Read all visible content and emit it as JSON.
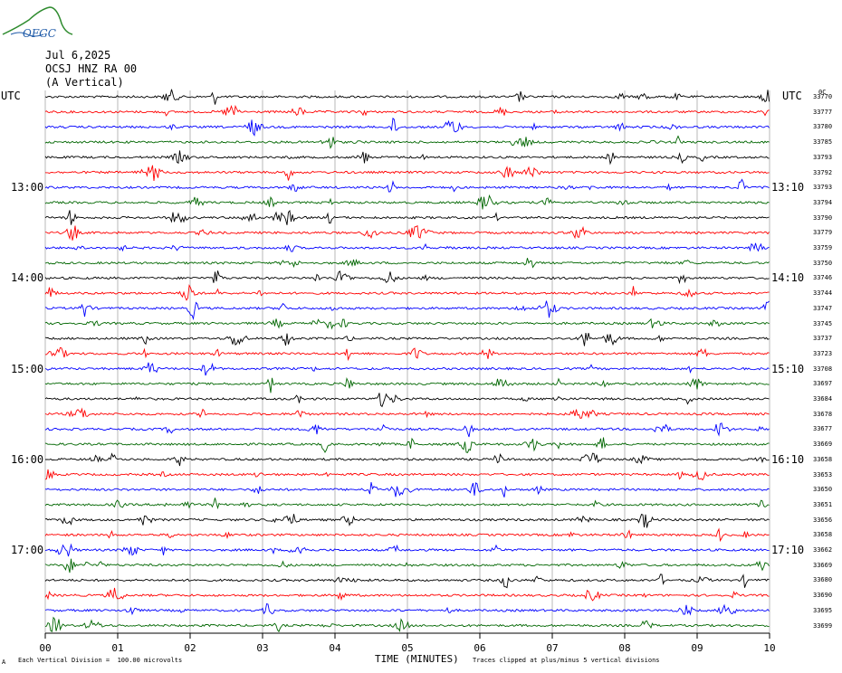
{
  "header": {
    "logo_text": "OFGC",
    "date": "Jul 6,2025",
    "station": "OCSJ HNZ RA 00",
    "component": "(A Vertical)",
    "left_tz": "UTC",
    "right_tz": "UTC"
  },
  "footer": {
    "scale_note": "Each Vertical Division =  100.00 microvolts",
    "clip_note": "Traces clipped at plus/minus 5 vertical divisions",
    "corner_mark": "A"
  },
  "colors": [
    "#000000",
    "#ff0000",
    "#0000ff",
    "#006600"
  ],
  "chart_data": {
    "type": "line",
    "xlabel": "TIME (MINUTES)",
    "x_ticks": [
      "00",
      "01",
      "02",
      "03",
      "04",
      "05",
      "06",
      "07",
      "08",
      "09",
      "10"
    ],
    "xlim": [
      0,
      10
    ],
    "left_time_labels": [
      {
        "row": 6,
        "label": "13:00"
      },
      {
        "row": 12,
        "label": "14:00"
      },
      {
        "row": 18,
        "label": "15:00"
      },
      {
        "row": 24,
        "label": "16:00"
      },
      {
        "row": 30,
        "label": "17:00"
      }
    ],
    "right_time_labels": [
      {
        "row": 6,
        "label": "13:10"
      },
      {
        "row": 12,
        "label": "14:10"
      },
      {
        "row": 18,
        "label": "15:10"
      },
      {
        "row": 24,
        "label": "16:10"
      },
      {
        "row": 30,
        "label": "17:10"
      }
    ],
    "right_top_label": "0C",
    "row_counts": [
      "33770",
      "33777",
      "33780",
      "33785",
      "33793",
      "33792",
      "33793",
      "33794",
      "33790",
      "33779",
      "33759",
      "33750",
      "33746",
      "33744",
      "33747",
      "33745",
      "33737",
      "33723",
      "33708",
      "33697",
      "33684",
      "33678",
      "33677",
      "33669",
      "33658",
      "33653",
      "33650",
      "33651",
      "33656",
      "33658",
      "33662",
      "33669",
      "33680",
      "33690",
      "33695",
      "33699"
    ]
  }
}
